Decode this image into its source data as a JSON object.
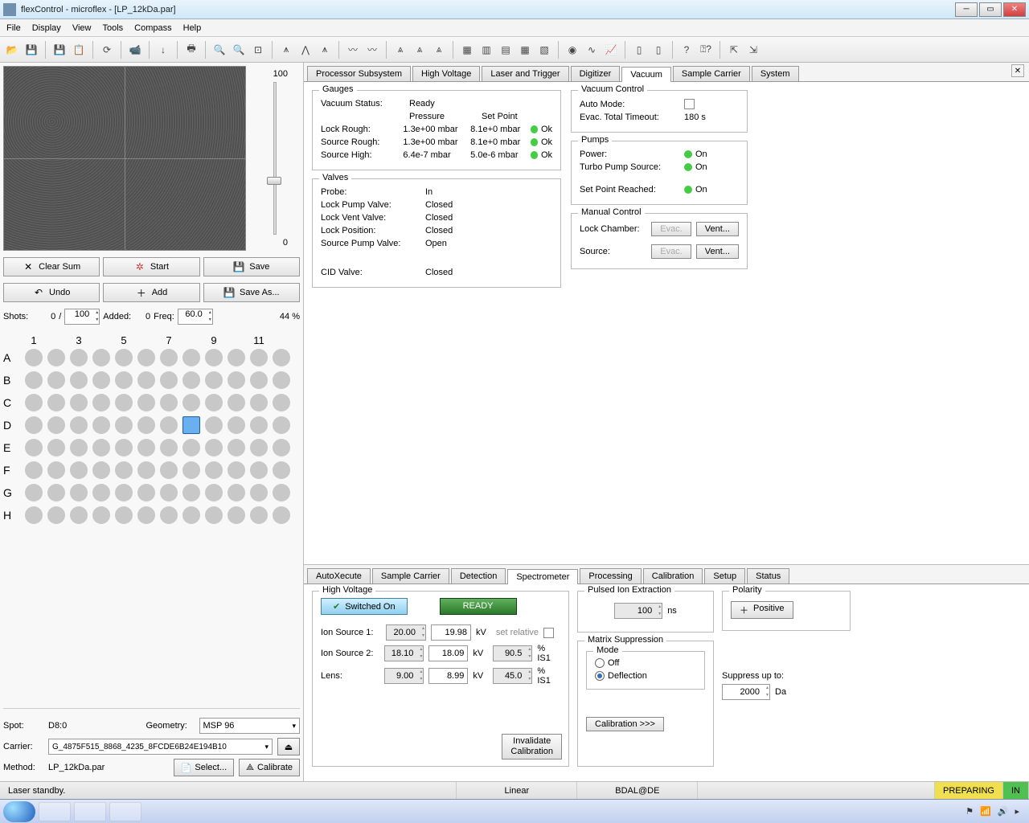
{
  "window": {
    "title": "flexControl - microflex - [LP_12kDa.par]"
  },
  "menu": [
    "File",
    "Display",
    "View",
    "Tools",
    "Compass",
    "Help"
  ],
  "slider": {
    "max": "100",
    "min": "0",
    "percent": "44 %"
  },
  "actions": {
    "clear": "Clear Sum",
    "start": "Start",
    "save": "Save",
    "undo": "Undo",
    "add": "Add",
    "saveas": "Save As..."
  },
  "shots": {
    "label": "Shots:",
    "current": "0",
    "sep": "/",
    "total": "100",
    "added_lbl": "Added:",
    "added": "0",
    "freq_lbl": "Freq:",
    "freq": "60.0"
  },
  "plate": {
    "cols": [
      "1",
      "",
      "3",
      "",
      "5",
      "",
      "7",
      "",
      "9",
      "",
      "11",
      ""
    ],
    "rows": [
      "A",
      "B",
      "C",
      "D",
      "E",
      "F",
      "G",
      "H"
    ],
    "selected": "D8"
  },
  "info": {
    "spot_lbl": "Spot:",
    "spot": "D8:0",
    "geom_lbl": "Geometry:",
    "geom": "MSP 96",
    "carrier_lbl": "Carrier:",
    "carrier": "G_4875F515_8868_4235_8FCDE6B24E194B10",
    "method_lbl": "Method:",
    "method": "LP_12kDa.par",
    "select_btn": "Select...",
    "calib_btn": "Calibrate"
  },
  "top_tabs": [
    "Processor Subsystem",
    "High Voltage",
    "Laser and Trigger",
    "Digitizer",
    "Vacuum",
    "Sample Carrier",
    "System"
  ],
  "top_active": "Vacuum",
  "gauges": {
    "legend": "Gauges",
    "status_lbl": "Vacuum Status:",
    "status": "Ready",
    "h_pressure": "Pressure",
    "h_setpoint": "Set Point",
    "rows": [
      {
        "k": "Lock Rough:",
        "p": "1.3e+00 mbar",
        "s": "8.1e+0 mbar",
        "ok": "Ok"
      },
      {
        "k": "Source Rough:",
        "p": "1.3e+00 mbar",
        "s": "8.1e+0 mbar",
        "ok": "Ok"
      },
      {
        "k": "Source High:",
        "p": "6.4e-7 mbar",
        "s": "5.0e-6 mbar",
        "ok": "Ok"
      }
    ]
  },
  "valves": {
    "legend": "Valves",
    "rows": [
      {
        "k": "Probe:",
        "v": "In"
      },
      {
        "k": "Lock Pump Valve:",
        "v": "Closed"
      },
      {
        "k": "Lock Vent Valve:",
        "v": "Closed"
      },
      {
        "k": "Lock Position:",
        "v": "Closed"
      },
      {
        "k": "Source Pump Valve:",
        "v": "Open"
      }
    ],
    "cid_k": "CID Valve:",
    "cid_v": "Closed"
  },
  "vac_ctrl": {
    "legend": "Vacuum Control",
    "auto_lbl": "Auto Mode:",
    "evac_lbl": "Evac. Total Timeout:",
    "evac_val": "180 s"
  },
  "pumps": {
    "legend": "Pumps",
    "rows": [
      {
        "k": "Power:",
        "v": "On"
      },
      {
        "k": "Turbo Pump Source:",
        "v": "On"
      }
    ],
    "sp_k": "Set Point Reached:",
    "sp_v": "On"
  },
  "manual": {
    "legend": "Manual Control",
    "lock_lbl": "Lock Chamber:",
    "src_lbl": "Source:",
    "evac": "Evac.",
    "vent": "Vent..."
  },
  "bot_tabs": [
    "AutoXecute",
    "Sample Carrier",
    "Detection",
    "Spectrometer",
    "Processing",
    "Calibration",
    "Setup",
    "Status"
  ],
  "bot_active": "Spectrometer",
  "hv": {
    "legend": "High Voltage",
    "switched": "Switched On",
    "ready": "READY",
    "is1_lbl": "Ion Source 1:",
    "is1_set": "20.00",
    "is1_act": "19.98",
    "is1_u": "kV",
    "setrel": "set relative",
    "is2_lbl": "Ion Source 2:",
    "is2_set": "18.10",
    "is2_act": "18.09",
    "is2_u": "kV",
    "is2_pct": "90.5",
    "is2_pu": "% IS1",
    "lens_lbl": "Lens:",
    "lens_set": "9.00",
    "lens_act": "8.99",
    "lens_u": "kV",
    "lens_pct": "45.0",
    "lens_pu": "% IS1",
    "inval": "Invalidate Calibration"
  },
  "pie": {
    "legend": "Pulsed Ion Extraction",
    "val": "100",
    "unit": "ns"
  },
  "polarity": {
    "legend": "Polarity",
    "val": "Positive"
  },
  "matrix": {
    "legend": "Matrix Suppression",
    "mode_legend": "Mode",
    "off": "Off",
    "defl": "Deflection",
    "supp_lbl": "Suppress up to:",
    "supp_val": "2000",
    "supp_u": "Da",
    "calib": "Calibration >>>"
  },
  "status": {
    "left": "Laser standby.",
    "mid": "Linear",
    "host": "BDAL@DE",
    "prep": "PREPARING",
    "in": "IN"
  }
}
